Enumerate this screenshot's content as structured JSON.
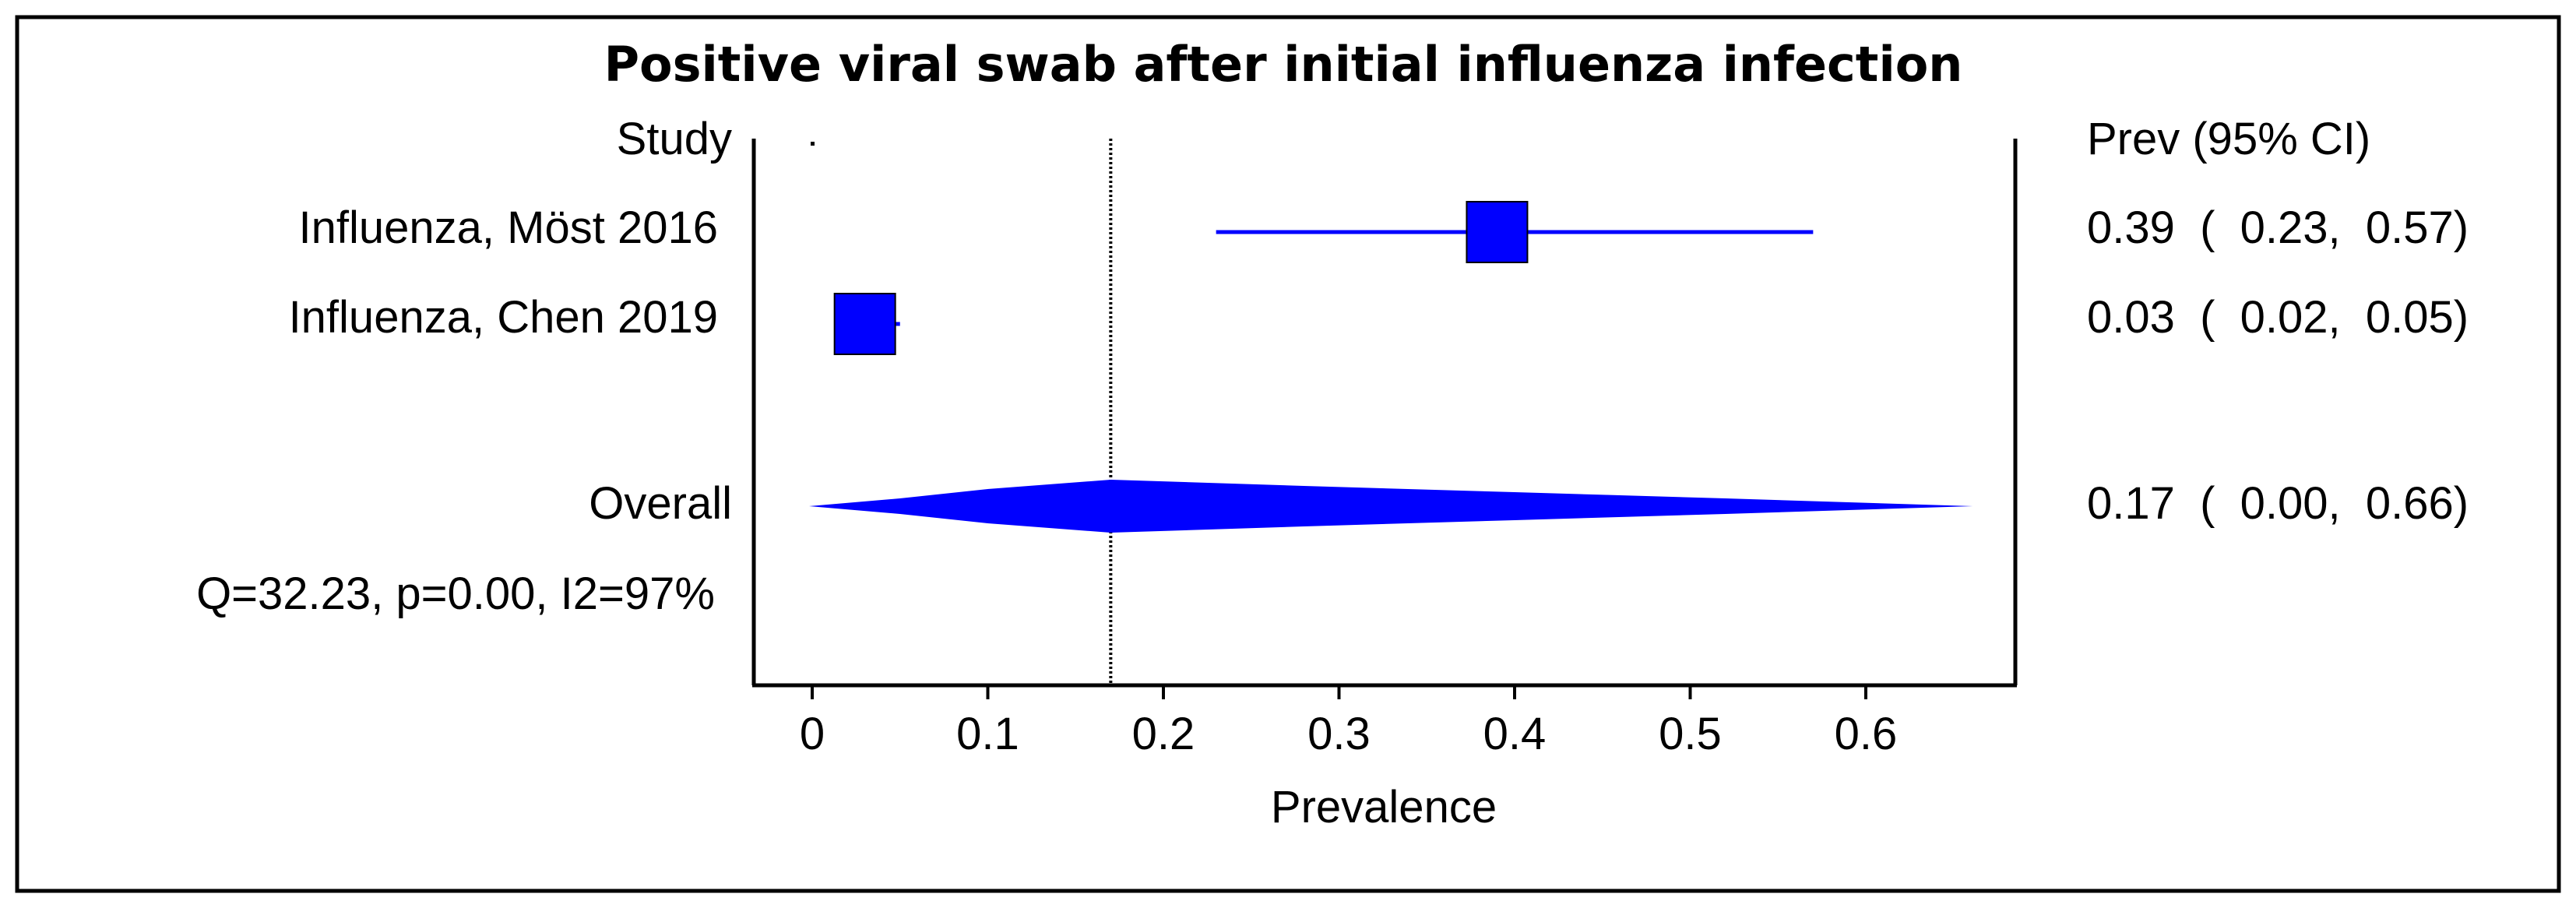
{
  "chart_data": {
    "type": "forest",
    "title": "Positive viral swab after initial influenza infection",
    "column_left_header": "Study",
    "column_right_header": "Prev (95% CI)",
    "xlabel": "Prevalence",
    "xlim": [
      -0.03,
      0.69
    ],
    "xticks": [
      0,
      0.1,
      0.2,
      0.3,
      0.4,
      0.5,
      0.6
    ],
    "xtick_labels": [
      "0",
      "0.1",
      "0.2",
      "0.3",
      "0.4",
      "0.5",
      "0.6"
    ],
    "reference_line": 0.17,
    "studies": [
      {
        "label": "Influenza, Möst 2016",
        "estimate": 0.39,
        "ci_low": 0.23,
        "ci_high": 0.57,
        "ci_text": "0.39  (  0.23,  0.57)"
      },
      {
        "label": "Influenza, Chen 2019",
        "estimate": 0.03,
        "ci_low": 0.02,
        "ci_high": 0.05,
        "ci_text": "0.03  (  0.02,  0.05)"
      }
    ],
    "overall": {
      "label": "Overall",
      "estimate": 0.17,
      "ci_low": 0.0,
      "ci_high": 0.66,
      "ci_text": "0.17  (  0.00,  0.66)"
    },
    "heterogeneity": "Q=32.23, p=0.00, I2=97%",
    "colors": {
      "marker": "#0000ff",
      "axis": "#000000",
      "border": "#000000"
    }
  }
}
